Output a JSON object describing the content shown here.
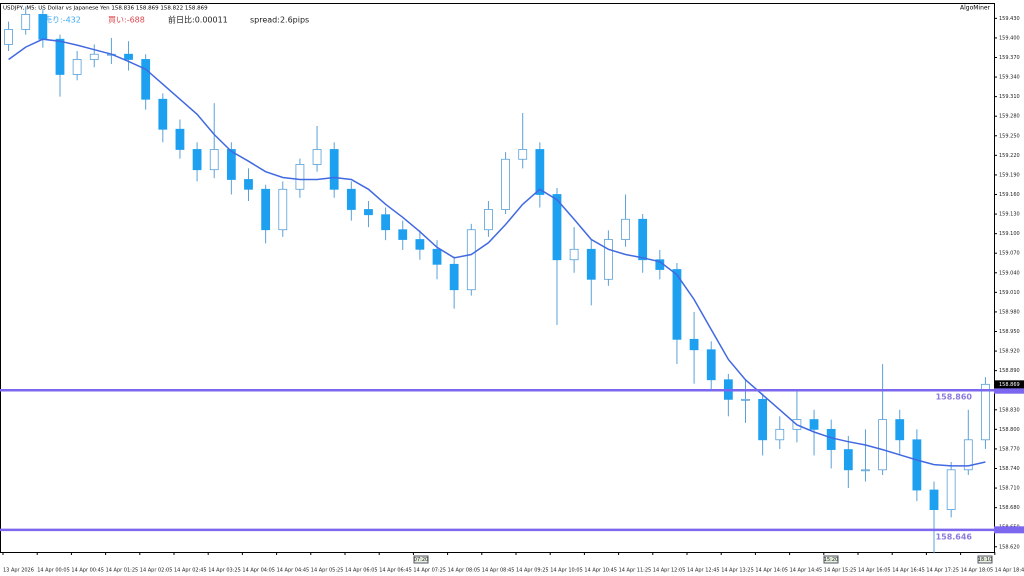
{
  "chart_data": {
    "type": "candlestick",
    "title": "USDJPY, M5:  US Dollar vs Japanese Yen  158.836 158.869 158.822 158.869",
    "info": {
      "sell": "売り:-432",
      "buy": "買い:-688",
      "change": "前日比:0.00011",
      "spread": "spread:2.6pips"
    },
    "brand": "AlgoMiner",
    "open": [
      159.39,
      159.413,
      159.436,
      159.398,
      159.344,
      159.367,
      159.375,
      159.375,
      159.367,
      159.306,
      159.26,
      159.229,
      159.198,
      159.229,
      159.183,
      159.168,
      159.106,
      159.168,
      159.206,
      159.229,
      159.168,
      159.137,
      159.129,
      159.106,
      159.091,
      159.076,
      159.053,
      159.014,
      159.106,
      159.137,
      159.214,
      159.229,
      159.16,
      159.06,
      159.076,
      159.03,
      159.091,
      159.122,
      159.06,
      159.045,
      158.938,
      158.922,
      158.876,
      158.846,
      158.846,
      158.784,
      158.8,
      158.815,
      158.8,
      158.769,
      158.738,
      158.738,
      158.815,
      158.784,
      158.707,
      158.677,
      158.738,
      158.784
    ],
    "high": [
      159.425,
      159.448,
      159.445,
      159.405,
      159.38,
      159.39,
      159.4,
      159.395,
      159.375,
      159.315,
      159.275,
      159.24,
      159.3,
      159.24,
      159.2,
      159.175,
      159.18,
      159.215,
      159.265,
      159.24,
      159.18,
      159.15,
      159.14,
      159.12,
      159.105,
      159.09,
      159.065,
      159.115,
      159.15,
      159.225,
      159.285,
      159.24,
      159.17,
      159.11,
      159.09,
      159.105,
      159.16,
      159.13,
      159.075,
      159.055,
      158.98,
      158.935,
      158.885,
      158.875,
      158.855,
      158.82,
      158.86,
      158.83,
      158.815,
      158.79,
      158.8,
      158.9,
      158.83,
      158.8,
      158.72,
      158.75,
      158.83,
      158.88
    ],
    "low": [
      159.38,
      159.405,
      159.385,
      159.31,
      159.335,
      159.355,
      159.36,
      159.35,
      159.29,
      159.24,
      159.215,
      159.18,
      159.185,
      159.16,
      159.15,
      159.085,
      159.095,
      159.155,
      159.195,
      159.155,
      159.12,
      159.11,
      159.09,
      159.075,
      159.06,
      159.03,
      158.985,
      159.005,
      159.095,
      159.13,
      159.2,
      159.14,
      158.96,
      159.04,
      158.99,
      159.02,
      159.08,
      159.04,
      159.03,
      158.9,
      158.87,
      158.86,
      158.82,
      158.81,
      158.76,
      158.77,
      158.78,
      158.76,
      158.74,
      158.71,
      158.72,
      158.73,
      158.76,
      158.69,
      158.61,
      158.665,
      158.73,
      158.77
    ],
    "close": [
      159.413,
      159.436,
      159.398,
      159.344,
      159.367,
      159.375,
      159.375,
      159.367,
      159.306,
      159.26,
      159.229,
      159.198,
      159.229,
      159.183,
      159.168,
      159.106,
      159.168,
      159.206,
      159.229,
      159.168,
      159.137,
      159.129,
      159.106,
      159.091,
      159.076,
      159.053,
      159.014,
      159.106,
      159.137,
      159.214,
      159.229,
      159.16,
      159.06,
      159.076,
      159.03,
      159.091,
      159.122,
      159.06,
      159.045,
      158.938,
      158.922,
      158.876,
      158.846,
      158.846,
      158.784,
      158.8,
      158.815,
      158.8,
      158.769,
      158.738,
      158.738,
      158.815,
      158.784,
      158.707,
      158.677,
      158.738,
      158.784,
      158.869
    ],
    "ma": [
      159.367,
      159.386,
      159.398,
      159.395,
      159.389,
      159.382,
      159.375,
      159.364,
      159.352,
      159.329,
      159.306,
      159.283,
      159.252,
      159.226,
      159.211,
      159.195,
      159.186,
      159.183,
      159.183,
      159.186,
      159.183,
      159.168,
      159.145,
      159.125,
      159.103,
      159.079,
      159.063,
      159.068,
      159.086,
      159.114,
      159.145,
      159.168,
      159.152,
      159.122,
      159.091,
      159.076,
      159.068,
      159.063,
      159.057,
      159.037,
      158.999,
      158.953,
      158.907,
      158.876,
      158.853,
      158.83,
      158.807,
      158.796,
      158.787,
      158.781,
      158.776,
      158.769,
      158.761,
      158.753,
      158.746,
      158.744,
      158.744,
      158.75
    ],
    "up_color": "#ffffff",
    "down_color": "#1ea0f0",
    "wick_color": "#5aa0d8",
    "ma_color": "#4169e1",
    "levels": [
      {
        "value": 158.86,
        "label": "158.860"
      },
      {
        "value": 158.646,
        "label": "158.646"
      }
    ],
    "level_color": "#7b68ee",
    "last_price": {
      "value": 158.869,
      "label": "158.869"
    },
    "ylim": [
      158.612,
      159.452
    ],
    "yticks": [
      {
        "value": 159.43,
        "label": "159.430"
      },
      {
        "value": 159.4,
        "label": "159.400"
      },
      {
        "value": 159.37,
        "label": "159.370"
      },
      {
        "value": 159.34,
        "label": "159.340"
      },
      {
        "value": 159.31,
        "label": "159.310"
      },
      {
        "value": 159.28,
        "label": "159.280"
      },
      {
        "value": 159.25,
        "label": "159.250"
      },
      {
        "value": 159.22,
        "label": "159.220"
      },
      {
        "value": 159.19,
        "label": "159.190"
      },
      {
        "value": 159.16,
        "label": "159.160"
      },
      {
        "value": 159.13,
        "label": "159.130"
      },
      {
        "value": 159.1,
        "label": "159.100"
      },
      {
        "value": 159.07,
        "label": "159.070"
      },
      {
        "value": 159.04,
        "label": "159.040"
      },
      {
        "value": 159.01,
        "label": "159.010"
      },
      {
        "value": 158.98,
        "label": "158.980"
      },
      {
        "value": 158.95,
        "label": "158.950"
      },
      {
        "value": 158.92,
        "label": "158.920"
      },
      {
        "value": 158.89,
        "label": "158.890"
      },
      {
        "value": 158.86,
        "label": "158.860"
      },
      {
        "value": 158.83,
        "label": "158.830"
      },
      {
        "value": 158.8,
        "label": "158.800"
      },
      {
        "value": 158.77,
        "label": "158.770"
      },
      {
        "value": 158.74,
        "label": "158.740"
      },
      {
        "value": 158.71,
        "label": "158.710"
      },
      {
        "value": 158.68,
        "label": "158.680"
      },
      {
        "value": 158.65,
        "label": "158.650"
      },
      {
        "value": 158.62,
        "label": "158.620"
      }
    ],
    "x_labels": [
      "13 Apr 2026",
      "14 Apr 00:05",
      "14 Apr 00:45",
      "14 Apr 01:25",
      "14 Apr 02:05",
      "14 Apr 02:45",
      "14 Apr 03:25",
      "14 Apr 04:05",
      "14 Apr 04:45",
      "14 Apr 05:25",
      "14 Apr 06:05",
      "14 Apr 06:45",
      "14 Apr 07:25",
      "14 Apr 08:05",
      "14 Apr 08:45",
      "14 Apr 09:25",
      "14 Apr 10:05",
      "14 Apr 10:45",
      "14 Apr 11:25",
      "14 Apr 12:05",
      "14 Apr 12:45",
      "14 Apr 13:25",
      "14 Apr 14:05",
      "14 Apr 14:45",
      "14 Apr 15:25",
      "14 Apr 16:05",
      "14 Apr 16:45",
      "14 Apr 17:25",
      "14 Apr 18:05",
      "14 Apr 18:45"
    ],
    "time_markers": [
      "07:20",
      "15:20",
      "18:10"
    ]
  }
}
